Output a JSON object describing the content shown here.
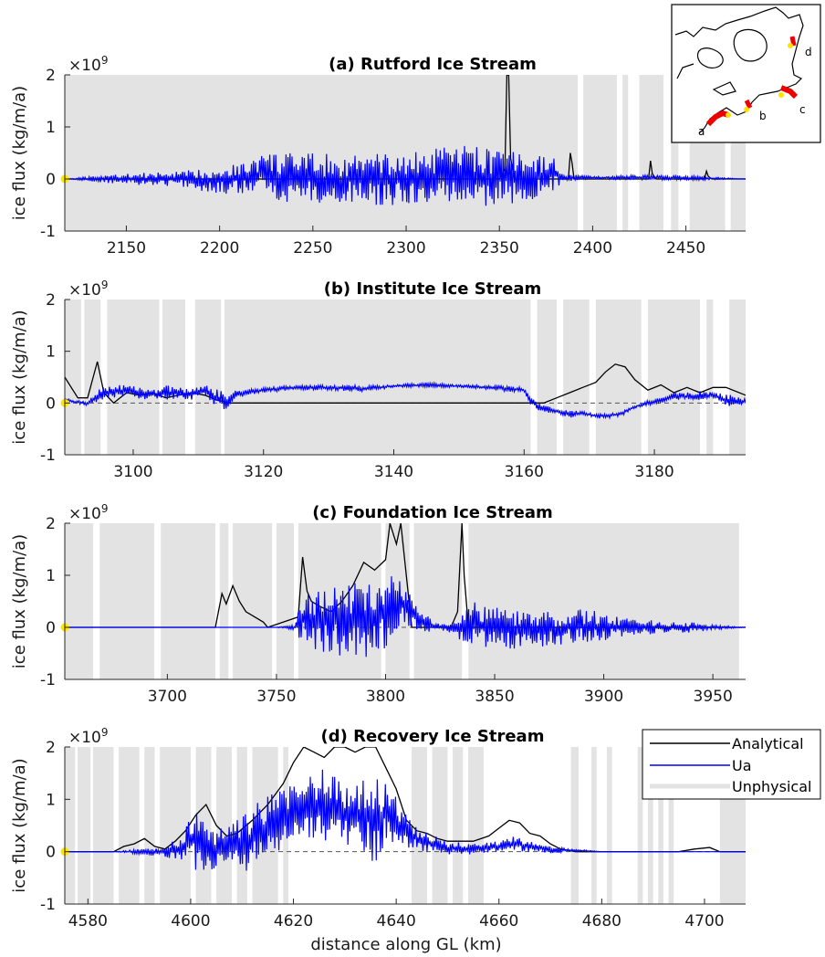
{
  "figure": {
    "x_axis_label": "distance along GL (km)",
    "y_axis_label": "ice flux (kg/m/a)",
    "y_multiplier": "×10",
    "y_multiplier_exp": "9",
    "legend": [
      {
        "name": "Analytical",
        "color": "#000000"
      },
      {
        "name": "Ua",
        "color": "#0000ff"
      },
      {
        "name": "Unphysical",
        "color": "#e3e3e3"
      }
    ],
    "inset_labels": [
      "a",
      "b",
      "c",
      "d"
    ]
  },
  "chart_data": [
    {
      "type": "line",
      "title": "(a) Rutford Ice Stream",
      "xlim": [
        2117,
        2482
      ],
      "ylim": [
        -1,
        2
      ],
      "xticks": [
        2150,
        2200,
        2250,
        2300,
        2350,
        2400,
        2450
      ],
      "yticks": [
        -1,
        0,
        1,
        2
      ],
      "grid": false,
      "unphysical_intervals": [
        [
          2117,
          2392
        ],
        [
          2395,
          2413
        ],
        [
          2416,
          2419
        ],
        [
          2425,
          2438
        ],
        [
          2442,
          2446
        ],
        [
          2452,
          2471
        ],
        [
          2474,
          2482
        ]
      ],
      "series": [
        {
          "name": "Analytical",
          "color": "#000000",
          "x": [
            2117,
            2200,
            2300,
            2350,
            2353,
            2354,
            2355,
            2356,
            2358,
            2380,
            2387,
            2388,
            2389,
            2390,
            2420,
            2430,
            2431,
            2432,
            2434,
            2460,
            2461,
            2462,
            2464,
            2482
          ],
          "y": [
            0,
            0,
            0,
            0,
            0.2,
            2,
            2,
            0.4,
            0,
            0,
            0,
            0.5,
            0.3,
            0,
            0,
            0,
            0.35,
            0.1,
            0,
            0,
            0.15,
            0.05,
            0,
            0
          ]
        },
        {
          "name": "Ua",
          "color": "#0000ff",
          "x": [
            2117,
            2140,
            2160,
            2180,
            2200,
            2215,
            2222,
            2228,
            2235,
            2245,
            2255,
            2265,
            2275,
            2285,
            2292,
            2300,
            2310,
            2318,
            2326,
            2334,
            2342,
            2350,
            2358,
            2366,
            2374,
            2380,
            2385,
            2400,
            2430,
            2460,
            2482
          ],
          "y": [
            0,
            0.08,
            0.12,
            0.15,
            0.25,
            0.35,
            0.5,
            0.5,
            0.5,
            0.5,
            0.5,
            0.45,
            0.5,
            0.5,
            0.5,
            0.5,
            0.55,
            0.6,
            0.65,
            0.65,
            0.6,
            0.6,
            0.55,
            0.5,
            0.45,
            0.4,
            0.1,
            0.05,
            0.08,
            0.05,
            0
          ],
          "y_low": [
            0,
            -0.08,
            -0.12,
            -0.15,
            -0.3,
            -0.3,
            -0.3,
            -0.35,
            -0.5,
            -0.4,
            -0.5,
            -0.5,
            -0.45,
            -0.55,
            -0.55,
            -0.5,
            -0.55,
            -0.5,
            -0.45,
            -0.5,
            -0.6,
            -0.55,
            -0.5,
            -0.45,
            -0.3,
            -0.2,
            -0.05,
            0,
            -0.02,
            -0.02,
            0
          ]
        }
      ]
    },
    {
      "type": "line",
      "title": "(b) Institute Ice Stream",
      "xlim": [
        3089.5,
        3194
      ],
      "ylim": [
        -1,
        2
      ],
      "xticks": [
        3100,
        3120,
        3140,
        3160,
        3180
      ],
      "yticks": [
        -1,
        0,
        1,
        2
      ],
      "grid": false,
      "unphysical_intervals": [
        [
          3089.5,
          3092
        ],
        [
          3092.5,
          3095
        ],
        [
          3096,
          3104
        ],
        [
          3104.5,
          3108
        ],
        [
          3109.5,
          3113.5
        ],
        [
          3114,
          3161
        ],
        [
          3162,
          3165
        ],
        [
          3166,
          3170
        ],
        [
          3171,
          3178
        ],
        [
          3179,
          3187
        ],
        [
          3188,
          3189
        ],
        [
          3191.5,
          3194
        ]
      ],
      "series": [
        {
          "name": "Analytical",
          "color": "#000000",
          "x": [
            3089.5,
            3090.5,
            3091.5,
            3093,
            3094.5,
            3095.5,
            3097,
            3099,
            3101,
            3103,
            3105,
            3107,
            3109,
            3111,
            3113,
            3115,
            3160,
            3163,
            3165,
            3167,
            3169,
            3171,
            3172.5,
            3174,
            3175.5,
            3177,
            3179,
            3181,
            3183,
            3185,
            3187,
            3189,
            3191,
            3194
          ],
          "y": [
            0.5,
            0.3,
            0.1,
            0.1,
            0.8,
            0.2,
            0,
            0.2,
            0.15,
            0.2,
            0.1,
            0.15,
            0.2,
            0.15,
            0.05,
            0,
            0,
            0,
            0.1,
            0.2,
            0.3,
            0.4,
            0.6,
            0.75,
            0.7,
            0.45,
            0.25,
            0.35,
            0.2,
            0.3,
            0.2,
            0.3,
            0.3,
            0.15
          ]
        },
        {
          "name": "Ua",
          "color": "#0000ff",
          "x": [
            3089.5,
            3091,
            3093,
            3095,
            3097,
            3099,
            3101,
            3103,
            3105,
            3107,
            3109,
            3111,
            3112.5,
            3114,
            3116,
            3120,
            3125,
            3130,
            3135,
            3140,
            3145,
            3150,
            3155,
            3160,
            3161,
            3163,
            3165,
            3167,
            3169,
            3171,
            3173,
            3175,
            3177,
            3179,
            3181,
            3183,
            3185,
            3187,
            3189,
            3191,
            3194
          ],
          "y": [
            0.1,
            0.05,
            0.05,
            0.3,
            0.35,
            0.35,
            0.3,
            0.25,
            0.35,
            0.3,
            0.3,
            0.35,
            0.3,
            0.2,
            0.25,
            0.3,
            0.35,
            0.35,
            0.35,
            0.35,
            0.4,
            0.35,
            0.35,
            0.3,
            0.1,
            -0.05,
            -0.1,
            -0.15,
            -0.15,
            -0.2,
            -0.2,
            -0.15,
            -0.05,
            0.05,
            0.1,
            0.2,
            0.2,
            0.25,
            0.2,
            0.2,
            0.1
          ],
          "y_low": [
            0.05,
            0,
            -0.05,
            0.05,
            0.1,
            0.15,
            0.05,
            0.1,
            0.05,
            0.1,
            0.05,
            0.15,
            -0.1,
            -0.15,
            0.1,
            0.2,
            0.25,
            0.25,
            0.2,
            0.3,
            0.3,
            0.3,
            0.25,
            0.2,
            -0.05,
            -0.2,
            -0.2,
            -0.3,
            -0.25,
            -0.3,
            -0.3,
            -0.25,
            -0.1,
            -0.05,
            0,
            0.05,
            0.05,
            0.05,
            0.1,
            -0.1,
            -0.05
          ]
        }
      ]
    },
    {
      "type": "line",
      "title": "(c) Foundation Ice Stream",
      "xlim": [
        3653,
        3965
      ],
      "ylim": [
        -1,
        2
      ],
      "xticks": [
        3700,
        3750,
        3800,
        3850,
        3900,
        3950
      ],
      "yticks": [
        -1,
        0,
        1,
        2
      ],
      "grid": false,
      "unphysical_intervals": [
        [
          3653,
          3666
        ],
        [
          3669,
          3694
        ],
        [
          3697,
          3722
        ],
        [
          3724,
          3728
        ],
        [
          3730,
          3748
        ],
        [
          3750,
          3758
        ],
        [
          3760,
          3798
        ],
        [
          3800,
          3811
        ],
        [
          3813,
          3835
        ],
        [
          3838,
          3962
        ]
      ],
      "series": [
        {
          "name": "Analytical",
          "color": "#000000",
          "x": [
            3653,
            3700,
            3722,
            3725,
            3727,
            3730,
            3733,
            3736,
            3740,
            3744,
            3746,
            3760,
            3762,
            3764,
            3766,
            3770,
            3775,
            3780,
            3785,
            3790,
            3795,
            3800,
            3802,
            3805,
            3807,
            3809,
            3812,
            3830,
            3833,
            3835,
            3836,
            3838,
            3850,
            3965
          ],
          "y": [
            0,
            0,
            0,
            0.65,
            0.45,
            0.8,
            0.5,
            0.3,
            0.2,
            0.1,
            0,
            0.2,
            1.35,
            0.7,
            0.5,
            0.4,
            0.3,
            0.5,
            0.8,
            1.25,
            1.1,
            1.3,
            2,
            1.6,
            2,
            1.2,
            0,
            0,
            0.3,
            2,
            1.0,
            0,
            0,
            0
          ]
        },
        {
          "name": "Ua",
          "color": "#0000ff",
          "x": [
            3653,
            3700,
            3750,
            3758,
            3762,
            3766,
            3770,
            3775,
            3780,
            3785,
            3790,
            3795,
            3800,
            3803,
            3806,
            3808,
            3810,
            3815,
            3820,
            3825,
            3830,
            3835,
            3840,
            3850,
            3860,
            3870,
            3880,
            3890,
            3900,
            3910,
            3920,
            3930,
            3940,
            3950,
            3965
          ],
          "y": [
            0,
            0,
            0,
            0.05,
            0.6,
            0.7,
            0.8,
            0.75,
            0.85,
            0.85,
            0.9,
            0.9,
            1.05,
            1.1,
            1.0,
            0.9,
            0.7,
            0.4,
            0.2,
            0.05,
            0.1,
            0.25,
            0.5,
            0.4,
            0.35,
            0.3,
            0.3,
            0.35,
            0.3,
            0.2,
            0.15,
            0.1,
            0.1,
            0.05,
            0
          ],
          "y_low": [
            0,
            0,
            0,
            -0.05,
            -0.3,
            -0.4,
            -0.5,
            -0.5,
            -0.6,
            -0.65,
            -0.7,
            -0.6,
            -0.4,
            -0.2,
            -0.1,
            0,
            0,
            -0.05,
            -0.1,
            -0.05,
            -0.1,
            -0.3,
            -0.35,
            -0.4,
            -0.45,
            -0.4,
            -0.35,
            -0.3,
            -0.3,
            -0.2,
            -0.15,
            -0.1,
            -0.1,
            -0.05,
            0
          ]
        }
      ]
    },
    {
      "type": "line",
      "title": "(d) Recovery Ice Stream",
      "xlim": [
        4575.5,
        4708
      ],
      "ylim": [
        -1,
        2
      ],
      "xticks": [
        4580,
        4600,
        4620,
        4640,
        4660,
        4680,
        4700
      ],
      "yticks": [
        -1,
        0,
        1,
        2
      ],
      "grid": false,
      "unphysical_intervals": [
        [
          4575.5,
          4577.5
        ],
        [
          4578,
          4580.5
        ],
        [
          4581,
          4585
        ],
        [
          4586,
          4590
        ],
        [
          4591,
          4593
        ],
        [
          4594,
          4600
        ],
        [
          4601,
          4604
        ],
        [
          4605,
          4608
        ],
        [
          4609,
          4611
        ],
        [
          4612,
          4617
        ],
        [
          4618,
          4619
        ],
        [
          4643,
          4646
        ],
        [
          4647,
          4650
        ],
        [
          4651,
          4653
        ],
        [
          4654,
          4657
        ],
        [
          4674,
          4675.5
        ],
        [
          4678,
          4679
        ],
        [
          4681,
          4682
        ],
        [
          4687,
          4688
        ],
        [
          4689,
          4690
        ],
        [
          4691,
          4692
        ],
        [
          4693,
          4694
        ],
        [
          4703,
          4708
        ]
      ],
      "series": [
        {
          "name": "Analytical",
          "color": "#000000",
          "x": [
            4575.5,
            4585,
            4587,
            4589,
            4591,
            4593,
            4595,
            4597,
            4599,
            4601,
            4603,
            4605,
            4607,
            4609,
            4612,
            4615,
            4618,
            4620,
            4622,
            4624,
            4626,
            4628,
            4630,
            4632,
            4634,
            4636,
            4638,
            4640,
            4642,
            4644,
            4646,
            4648,
            4650,
            4655,
            4658,
            4660,
            4662,
            4664,
            4666,
            4668,
            4670,
            4672,
            4675,
            4695,
            4698,
            4701,
            4703,
            4708
          ],
          "y": [
            0,
            0,
            0.1,
            0.15,
            0.25,
            0.1,
            0.05,
            0.2,
            0.4,
            0.7,
            0.9,
            0.5,
            0.3,
            0.35,
            0.6,
            0.9,
            1.3,
            1.7,
            2,
            1.9,
            1.8,
            2,
            2,
            1.9,
            2,
            2,
            1.6,
            1.2,
            0.6,
            0.4,
            0.35,
            0.25,
            0.2,
            0.2,
            0.3,
            0.45,
            0.6,
            0.55,
            0.35,
            0.3,
            0.15,
            0.05,
            0,
            0,
            0.05,
            0.08,
            0,
            0
          ]
        },
        {
          "name": "Ua",
          "color": "#0000ff",
          "x": [
            4575.5,
            4585,
            4590,
            4595,
            4598,
            4600,
            4602,
            4604,
            4606,
            4608,
            4610,
            4612,
            4614,
            4616,
            4618,
            4620,
            4622,
            4624,
            4626,
            4628,
            4630,
            4632,
            4634,
            4636,
            4638,
            4640,
            4642,
            4645,
            4650,
            4655,
            4660,
            4663,
            4666,
            4670,
            4675,
            4680,
            4708
          ],
          "y": [
            0,
            0,
            0.05,
            0.1,
            0.3,
            0.7,
            0.9,
            0.6,
            0.5,
            0.5,
            0.8,
            0.9,
            1.0,
            1.2,
            1.3,
            1.4,
            1.55,
            1.45,
            1.6,
            1.5,
            1.4,
            1.45,
            1.4,
            1.5,
            1.3,
            1.05,
            0.7,
            0.4,
            0.2,
            0.15,
            0.2,
            0.3,
            0.2,
            0.1,
            0.05,
            0,
            0
          ],
          "y_low": [
            0,
            0,
            -0.05,
            -0.1,
            -0.2,
            -0.3,
            -0.4,
            -0.5,
            -0.3,
            -0.2,
            -0.4,
            -0.35,
            -0.25,
            -0.1,
            0.1,
            0.2,
            0.3,
            0.2,
            0.1,
            0.2,
            0.1,
            -0.1,
            0,
            -0.3,
            0.2,
            0.1,
            0.05,
            0,
            -0.05,
            -0.05,
            0,
            0,
            0,
            -0.03,
            0,
            0,
            0
          ]
        }
      ]
    }
  ]
}
